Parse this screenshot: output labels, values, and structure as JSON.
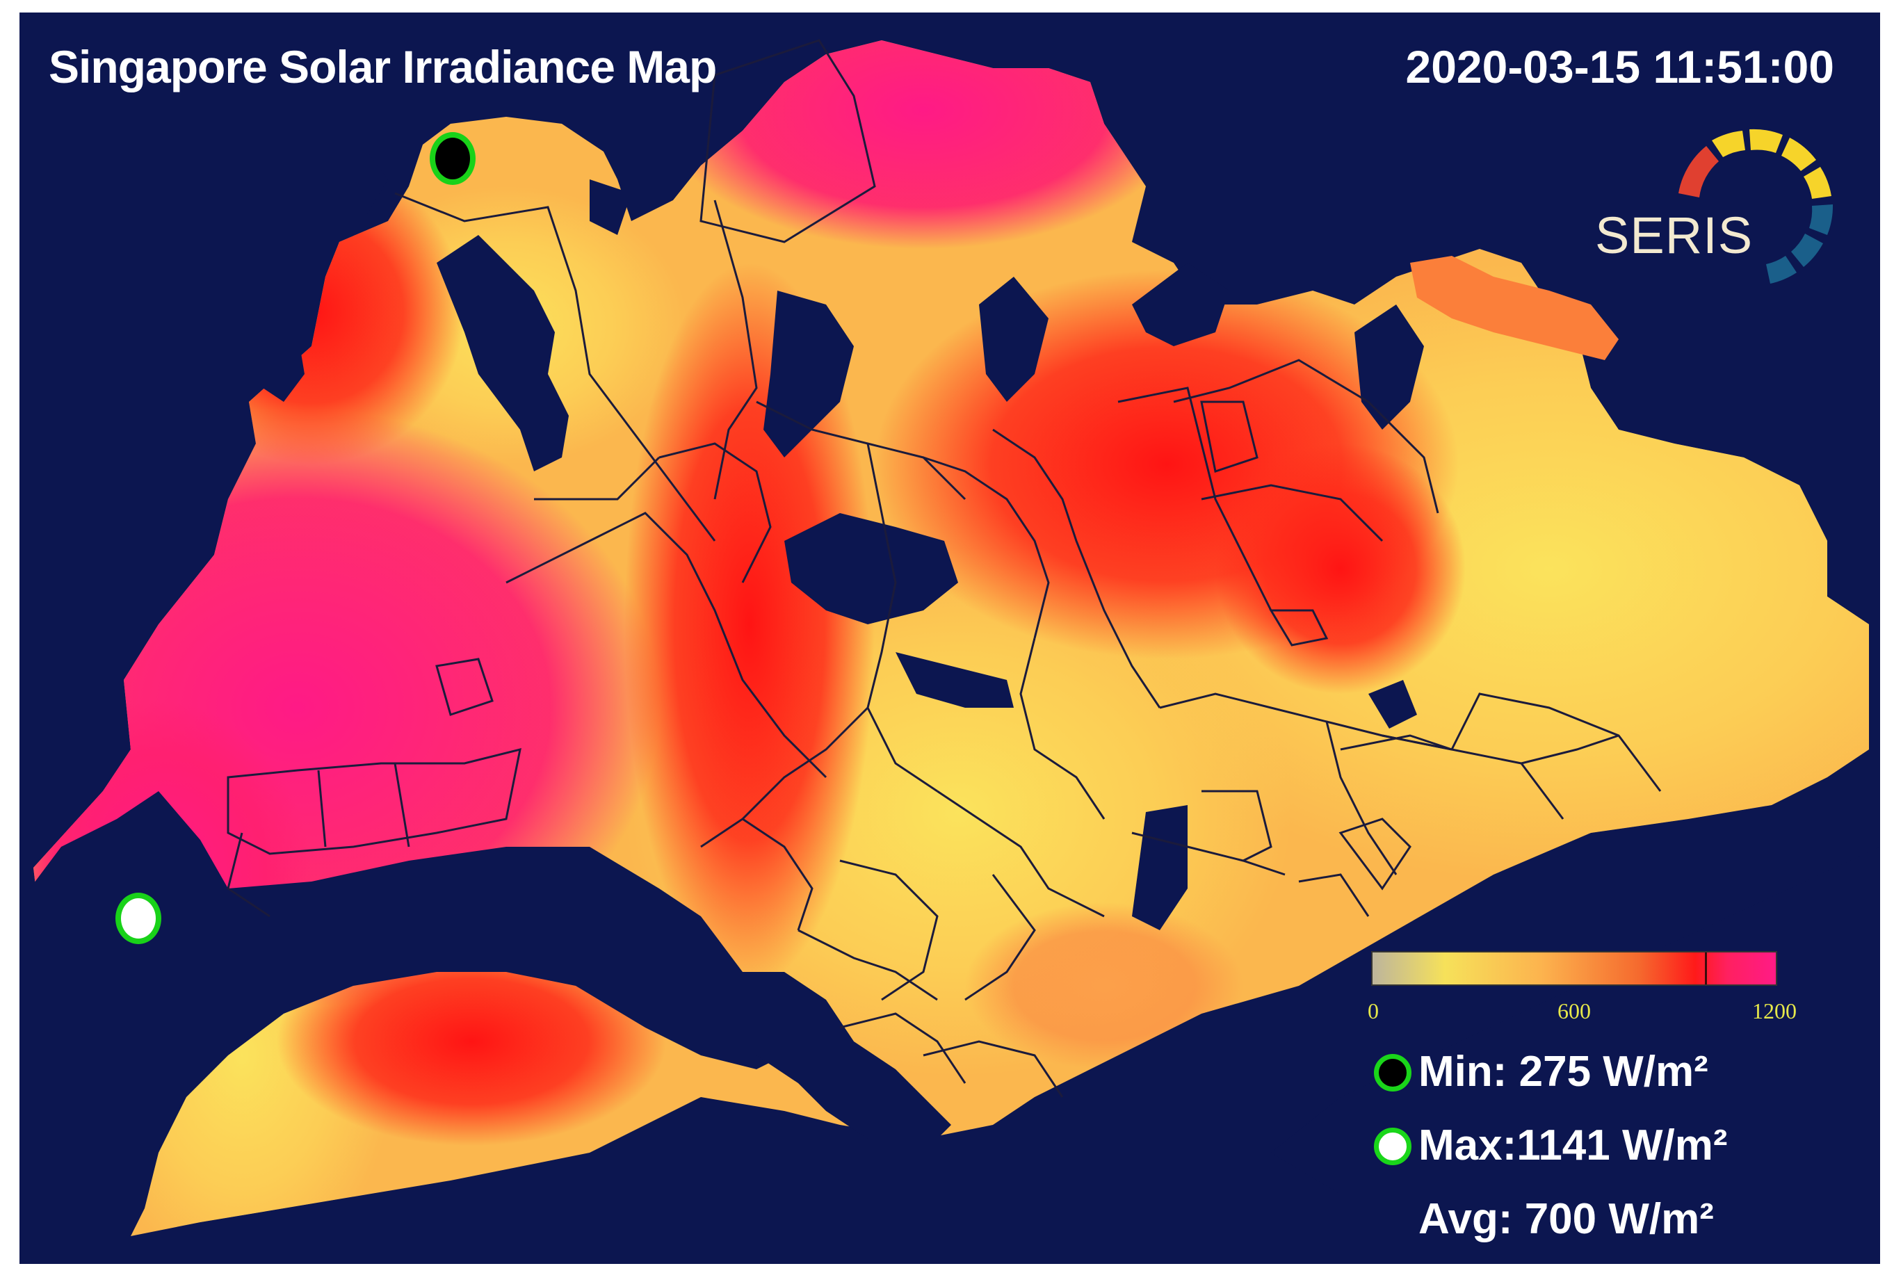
{
  "header": {
    "title": "Singapore Solar Irradiance Map",
    "timestamp": "2020-03-15 11:51:00"
  },
  "logo": {
    "text": "SERIS",
    "colors": [
      "#e04030",
      "#f6d42a",
      "#1a5f8a"
    ]
  },
  "map": {
    "sea_color": "#0c1650",
    "region_outline_color": "#1a1a3a",
    "color_stops": [
      "#f9e45c",
      "#fcb44e",
      "#f8662c",
      "#ff1a1a",
      "#ff1e88"
    ]
  },
  "legend": {
    "min_label": "0",
    "mid_label": "600",
    "max_label": "1200",
    "marker_value": 1000
  },
  "stats": {
    "min": "Min: 275 W/m²",
    "max": "Max:1141 W/m²",
    "avg": "Avg: 700 W/m²"
  },
  "pins": {
    "min_icon": "min-location-pin-icon",
    "max_icon": "max-location-pin-icon"
  }
}
